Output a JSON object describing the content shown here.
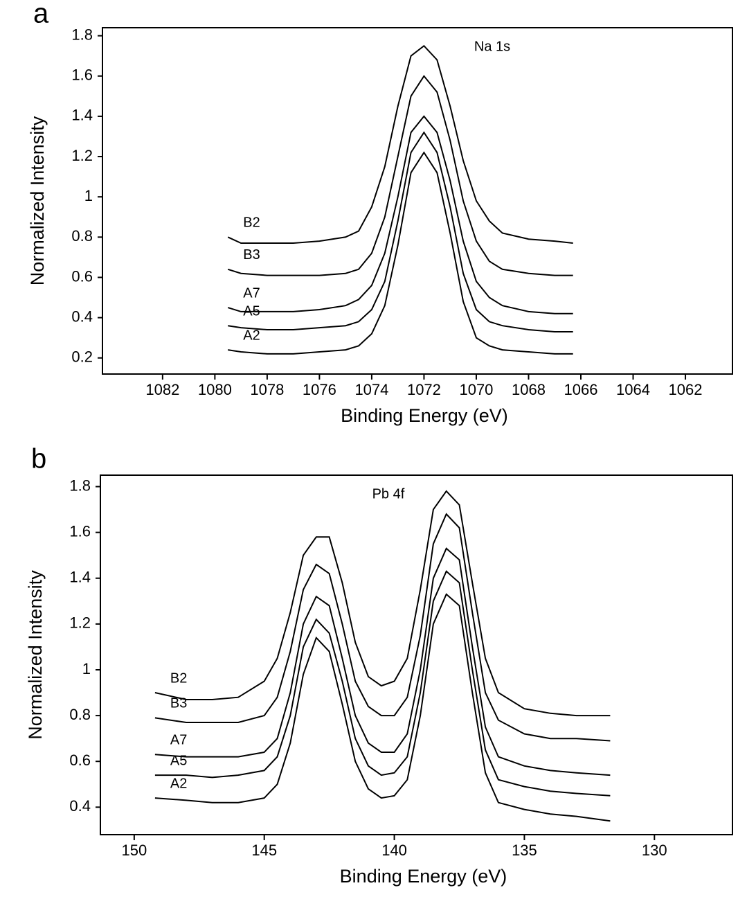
{
  "chart_data": [
    {
      "type": "line",
      "panel_label": "a",
      "annotation": "Na 1s",
      "xlabel": "Binding Energy (eV)",
      "ylabel": "Normalized Intensity",
      "xlim": [
        1084.3,
        1060.2
      ],
      "ylim": [
        0.12,
        1.84
      ],
      "xticks": [
        1082,
        1080,
        1078,
        1076,
        1074,
        1072,
        1070,
        1068,
        1066,
        1064,
        1062
      ],
      "yticks": [
        0.2,
        0.4,
        0.6,
        0.8,
        1,
        1.2,
        1.4,
        1.6,
        1.8
      ],
      "x": [
        1079.5,
        1079,
        1078,
        1077,
        1076,
        1075,
        1074.5,
        1074,
        1073.5,
        1073,
        1072.5,
        1072,
        1071.5,
        1071,
        1070.5,
        1070,
        1069.5,
        1069,
        1068,
        1067,
        1066.3
      ],
      "series": [
        {
          "name": "B2",
          "color": "#000000",
          "values": [
            0.8,
            0.77,
            0.77,
            0.77,
            0.78,
            0.8,
            0.83,
            0.95,
            1.15,
            1.45,
            1.7,
            1.75,
            1.68,
            1.45,
            1.18,
            0.98,
            0.88,
            0.82,
            0.79,
            0.78,
            0.77
          ]
        },
        {
          "name": "B3",
          "color": "#000000",
          "values": [
            0.64,
            0.62,
            0.61,
            0.61,
            0.61,
            0.62,
            0.64,
            0.72,
            0.9,
            1.2,
            1.5,
            1.6,
            1.52,
            1.28,
            0.98,
            0.78,
            0.68,
            0.64,
            0.62,
            0.61,
            0.61
          ]
        },
        {
          "name": "A7",
          "color": "#000000",
          "values": [
            0.45,
            0.43,
            0.43,
            0.43,
            0.44,
            0.46,
            0.49,
            0.56,
            0.72,
            1.0,
            1.32,
            1.4,
            1.32,
            1.08,
            0.78,
            0.58,
            0.5,
            0.46,
            0.43,
            0.42,
            0.42
          ]
        },
        {
          "name": "A5",
          "color": "#000000",
          "values": [
            0.36,
            0.35,
            0.34,
            0.34,
            0.35,
            0.36,
            0.38,
            0.44,
            0.58,
            0.88,
            1.22,
            1.32,
            1.22,
            0.95,
            0.62,
            0.44,
            0.38,
            0.36,
            0.34,
            0.33,
            0.33
          ]
        },
        {
          "name": "A2",
          "color": "#000000",
          "values": [
            0.24,
            0.23,
            0.22,
            0.22,
            0.23,
            0.24,
            0.26,
            0.32,
            0.46,
            0.76,
            1.12,
            1.22,
            1.12,
            0.82,
            0.48,
            0.3,
            0.26,
            0.24,
            0.23,
            0.22,
            0.22
          ]
        }
      ]
    },
    {
      "type": "line",
      "panel_label": "b",
      "annotation": "Pb 4f",
      "xlabel": "Binding Energy (eV)",
      "ylabel": "Normalized Intensity",
      "xlim": [
        151.3,
        127.0
      ],
      "ylim": [
        0.28,
        1.85
      ],
      "xticks": [
        150,
        145,
        140,
        135,
        130
      ],
      "yticks": [
        0.4,
        0.6,
        0.8,
        1,
        1.2,
        1.4,
        1.6,
        1.8
      ],
      "x": [
        149.2,
        148,
        147,
        146,
        145,
        144.5,
        144,
        143.5,
        143,
        142.5,
        142,
        141.5,
        141,
        140.5,
        140,
        139.5,
        139,
        138.5,
        138,
        137.5,
        137,
        136.5,
        136,
        135,
        134,
        133,
        131.7
      ],
      "series": [
        {
          "name": "B2",
          "color": "#000000",
          "values": [
            0.9,
            0.87,
            0.87,
            0.88,
            0.95,
            1.05,
            1.25,
            1.5,
            1.58,
            1.58,
            1.38,
            1.12,
            0.97,
            0.93,
            0.95,
            1.05,
            1.35,
            1.7,
            1.78,
            1.72,
            1.38,
            1.05,
            0.9,
            0.83,
            0.81,
            0.8,
            0.8
          ]
        },
        {
          "name": "B3",
          "color": "#000000",
          "values": [
            0.79,
            0.77,
            0.77,
            0.77,
            0.8,
            0.88,
            1.08,
            1.35,
            1.46,
            1.42,
            1.2,
            0.95,
            0.84,
            0.8,
            0.8,
            0.88,
            1.15,
            1.55,
            1.68,
            1.62,
            1.25,
            0.9,
            0.78,
            0.72,
            0.7,
            0.7,
            0.69
          ]
        },
        {
          "name": "A7",
          "color": "#000000",
          "values": [
            0.63,
            0.62,
            0.62,
            0.62,
            0.64,
            0.7,
            0.9,
            1.2,
            1.32,
            1.28,
            1.05,
            0.8,
            0.68,
            0.64,
            0.64,
            0.72,
            1.0,
            1.4,
            1.53,
            1.48,
            1.1,
            0.75,
            0.62,
            0.58,
            0.56,
            0.55,
            0.54
          ]
        },
        {
          "name": "A5",
          "color": "#000000",
          "values": [
            0.54,
            0.54,
            0.53,
            0.54,
            0.56,
            0.62,
            0.8,
            1.1,
            1.22,
            1.16,
            0.95,
            0.7,
            0.58,
            0.54,
            0.55,
            0.62,
            0.9,
            1.3,
            1.43,
            1.38,
            1.0,
            0.65,
            0.52,
            0.49,
            0.47,
            0.46,
            0.45
          ]
        },
        {
          "name": "A2",
          "color": "#000000",
          "values": [
            0.44,
            0.43,
            0.42,
            0.42,
            0.44,
            0.5,
            0.68,
            0.98,
            1.14,
            1.08,
            0.85,
            0.6,
            0.48,
            0.44,
            0.45,
            0.52,
            0.8,
            1.2,
            1.33,
            1.28,
            0.9,
            0.55,
            0.42,
            0.39,
            0.37,
            0.36,
            0.34
          ]
        }
      ]
    }
  ]
}
